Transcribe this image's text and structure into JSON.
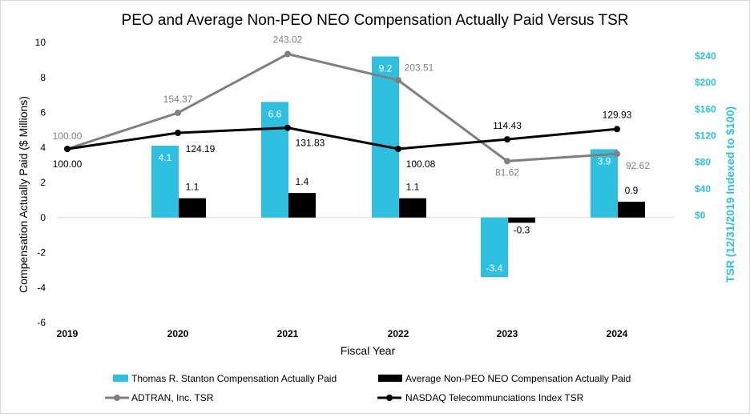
{
  "chart_data": {
    "type": "bar",
    "title": "PEO and Average Non-PEO NEO Compensation Actually Paid Versus TSR",
    "xlabel": "Fiscal Year",
    "ylabel": "Compensation Actually Paid ($ Millions)",
    "ylabel_right": "TSR (12/31/2019 Indexed to $100)",
    "categories": [
      "2019",
      "2020",
      "2021",
      "2022",
      "2023",
      "2024"
    ],
    "ylim": [
      -6,
      10
    ],
    "yticks": [
      "10",
      "8",
      "6",
      "4",
      "2",
      "0",
      "-2",
      "-4",
      "-6"
    ],
    "ylim_right": [
      0,
      240
    ],
    "yticks_right": [
      "$240",
      "$200",
      "$160",
      "$120",
      "$80",
      "$40",
      "$0"
    ],
    "bar_series": [
      {
        "name": "Thomas R. Stanton Compensation Actually Paid",
        "color": "#2ec0e0",
        "values": [
          null,
          4.1,
          6.6,
          9.2,
          -3.4,
          3.9
        ],
        "labels": [
          "",
          "4.1",
          "6.6",
          "9.2",
          "-3.4",
          "3.9"
        ]
      },
      {
        "name": "Average Non-PEO NEO Compensation Actually Paid",
        "color": "#000000",
        "values": [
          null,
          1.1,
          1.4,
          1.1,
          -0.3,
          0.9
        ],
        "labels": [
          "",
          "1.1",
          "1.4",
          "1.1",
          "-0.3",
          "0.9"
        ]
      }
    ],
    "line_series": [
      {
        "name": "ADTRAN, Inc. TSR",
        "color": "#808080",
        "values": [
          100.0,
          154.37,
          243.02,
          203.51,
          81.62,
          92.62
        ],
        "labels": [
          "100.00",
          "154.37",
          "243.02",
          "203.51",
          "81.62",
          "92.62"
        ]
      },
      {
        "name": "NASDAQ Telecommunciations Index TSR",
        "color": "#000000",
        "values": [
          100.0,
          124.19,
          131.83,
          100.08,
          114.43,
          129.93
        ],
        "labels": [
          "100.00",
          "124.19",
          "131.83",
          "100.08",
          "114.43",
          "129.93"
        ]
      }
    ],
    "grid": false,
    "legend_position": "bottom"
  }
}
